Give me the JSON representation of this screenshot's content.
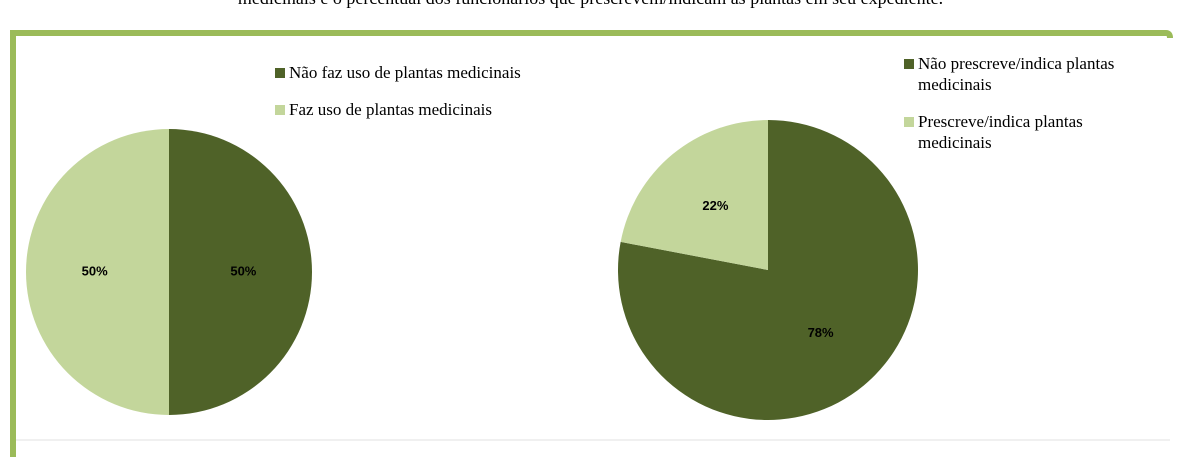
{
  "caption": "medicinais e o percentual dos funcionários que prescrevem/indicam as plantas em seu expediente.",
  "chart_data": [
    {
      "type": "pie",
      "categories": [
        "Não faz uso de plantas medicinais",
        "Faz uso de plantas medicinais"
      ],
      "values": [
        50,
        50
      ],
      "value_labels": [
        "50%",
        "50%"
      ],
      "colors": [
        "#4f6228",
        "#c3d69b"
      ]
    },
    {
      "type": "pie",
      "categories": [
        "Não prescreve/indica plantas medicinais",
        "Prescreve/indica plantas medicinais"
      ],
      "values": [
        78,
        22
      ],
      "value_labels": [
        "78%",
        "22%"
      ],
      "colors": [
        "#4f6228",
        "#c3d69b"
      ]
    }
  ]
}
